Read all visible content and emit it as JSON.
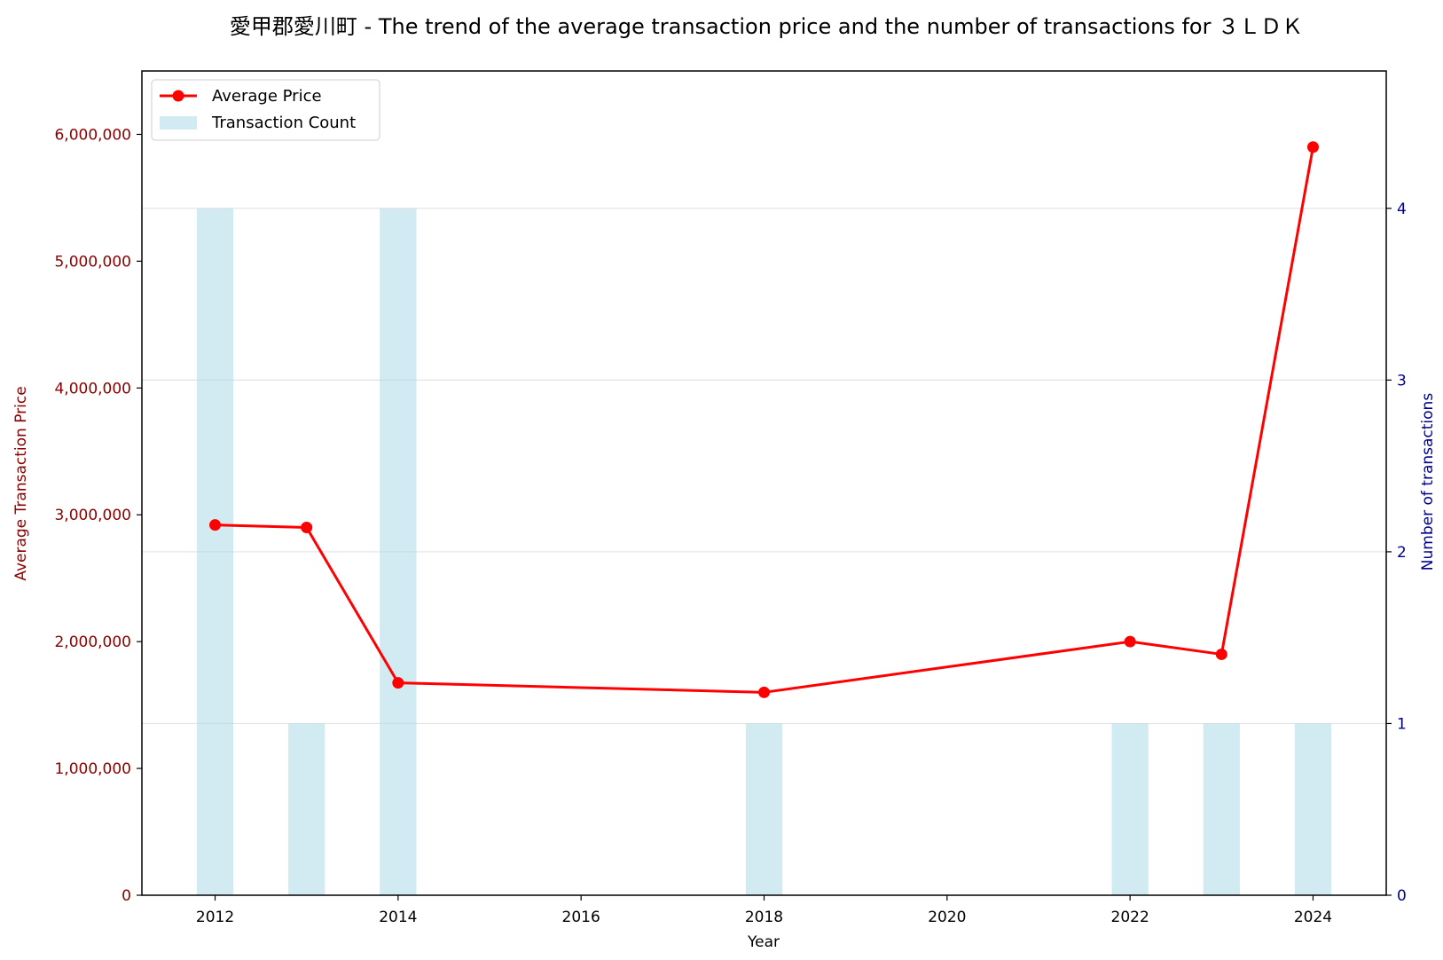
{
  "chart_data": {
    "type": "line+bar",
    "title": "愛甲郡愛川町 - The trend of the average transaction price and the number of transactions for ３ＬＤＫ",
    "xlabel": "Year",
    "ylabel_left": "Average Transaction Price",
    "ylabel_right": "Number of transactions",
    "xlim": [
      2011.2,
      2024.8
    ],
    "ylim_left": [
      0,
      6500000
    ],
    "ylim_right": [
      0,
      4.8
    ],
    "x_ticks": [
      2012,
      2014,
      2016,
      2018,
      2020,
      2022,
      2024
    ],
    "y_left_ticks": [
      0,
      1000000,
      2000000,
      3000000,
      4000000,
      5000000,
      6000000
    ],
    "y_left_tick_labels": [
      "0",
      "1,000,000",
      "2,000,000",
      "3,000,000",
      "4,000,000",
      "5,000,000",
      "6,000,000"
    ],
    "y_right_ticks": [
      0,
      1,
      2,
      3,
      4
    ],
    "y_right_tick_labels": [
      "0",
      "1",
      "2",
      "3",
      "4"
    ],
    "grid": "horizontal (right axis)",
    "legend_position": "top-left",
    "series": [
      {
        "name": "Average Price",
        "kind": "line",
        "color": "#ff0000",
        "x": [
          2012,
          2013,
          2014,
          2018,
          2022,
          2023,
          2024
        ],
        "values": [
          2920000,
          2900000,
          1675000,
          1600000,
          2000000,
          1900000,
          5900000
        ]
      },
      {
        "name": "Transaction Count",
        "kind": "bar",
        "axis": "right",
        "color": "#add8e6",
        "x": [
          2012,
          2013,
          2014,
          2018,
          2022,
          2023,
          2024
        ],
        "values": [
          4,
          1,
          4,
          1,
          1,
          1,
          1
        ]
      }
    ]
  }
}
